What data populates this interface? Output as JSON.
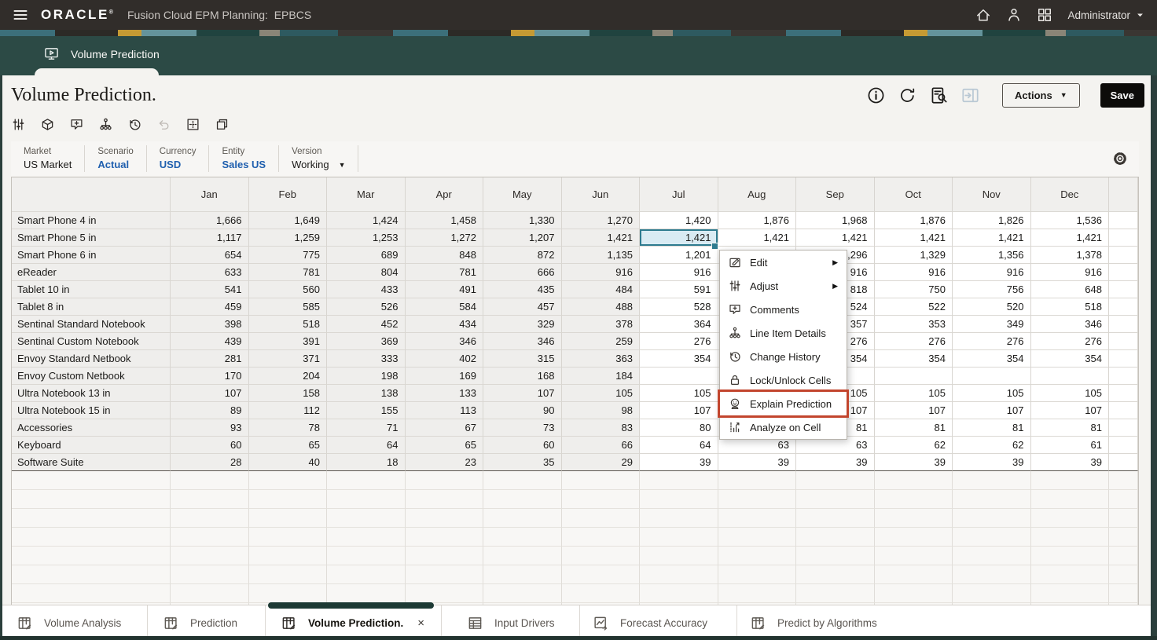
{
  "topbar": {
    "logo": "ORACLE",
    "trademark": "®",
    "product_title": "Fusion Cloud EPM Planning:  EPBCS",
    "user": "Administrator"
  },
  "workspace_tab": {
    "label": "Volume Prediction"
  },
  "page_header": {
    "title": "Volume Prediction.",
    "actions_button": "Actions",
    "save_button": "Save"
  },
  "toolbar_icons": [
    "adjust-icon",
    "cube-icon",
    "add-comment-icon",
    "hierarchy-icon",
    "history-icon",
    "undo-icon",
    "grid-select-icon",
    "window-icon"
  ],
  "pov": {
    "members": [
      {
        "dimension": "Market",
        "member": "US Market",
        "style": "plain",
        "dropdown": false
      },
      {
        "dimension": "Scenario",
        "member": "Actual",
        "style": "link",
        "dropdown": false
      },
      {
        "dimension": "Currency",
        "member": "USD",
        "style": "link",
        "dropdown": false
      },
      {
        "dimension": "Entity",
        "member": "Sales US",
        "style": "link",
        "dropdown": false
      },
      {
        "dimension": "Version",
        "member": "Working",
        "style": "plain",
        "dropdown": true
      }
    ]
  },
  "grid": {
    "months": [
      "Jan",
      "Feb",
      "Mar",
      "Apr",
      "May",
      "Jun",
      "Jul",
      "Aug",
      "Sep",
      "Oct",
      "Nov",
      "Dec"
    ],
    "readonly_month_count": 6,
    "empty_row_count": 8,
    "selected_cell": {
      "row": "Smart Phone 5 in",
      "month": "Jul",
      "value": "1,421",
      "row_index": 1,
      "month_index": 6
    },
    "rows": [
      {
        "label": "Smart Phone 4 in",
        "values": [
          "1,666",
          "1,649",
          "1,424",
          "1,458",
          "1,330",
          "1,270",
          "1,420",
          "1,876",
          "1,968",
          "1,876",
          "1,826",
          "1,536"
        ]
      },
      {
        "label": "Smart Phone 5 in",
        "values": [
          "1,117",
          "1,259",
          "1,253",
          "1,272",
          "1,207",
          "1,421",
          "1,421",
          "1,421",
          "1,421",
          "1,421",
          "1,421",
          "1,421"
        ]
      },
      {
        "label": "Smart Phone 6 in",
        "values": [
          "654",
          "775",
          "689",
          "848",
          "872",
          "1,135",
          "1,201",
          "",
          "1,296",
          "1,329",
          "1,356",
          "1,378"
        ]
      },
      {
        "label": "eReader",
        "values": [
          "633",
          "781",
          "804",
          "781",
          "666",
          "916",
          "916",
          "",
          "916",
          "916",
          "916",
          "916"
        ]
      },
      {
        "label": "Tablet 10 in",
        "values": [
          "541",
          "560",
          "433",
          "491",
          "435",
          "484",
          "591",
          "",
          "818",
          "750",
          "756",
          "648"
        ]
      },
      {
        "label": "Tablet 8 in",
        "values": [
          "459",
          "585",
          "526",
          "584",
          "457",
          "488",
          "528",
          "",
          "524",
          "522",
          "520",
          "518"
        ]
      },
      {
        "label": "Sentinal Standard Notebook",
        "values": [
          "398",
          "518",
          "452",
          "434",
          "329",
          "378",
          "364",
          "",
          "357",
          "353",
          "349",
          "346"
        ]
      },
      {
        "label": "Sentinal Custom Notebook",
        "values": [
          "439",
          "391",
          "369",
          "346",
          "346",
          "259",
          "276",
          "",
          "276",
          "276",
          "276",
          "276"
        ]
      },
      {
        "label": "Envoy Standard Netbook",
        "values": [
          "281",
          "371",
          "333",
          "402",
          "315",
          "363",
          "354",
          "",
          "354",
          "354",
          "354",
          "354"
        ]
      },
      {
        "label": "Envoy Custom Netbook",
        "values": [
          "170",
          "204",
          "198",
          "169",
          "168",
          "184",
          "",
          "",
          "",
          "",
          "",
          ""
        ]
      },
      {
        "label": "Ultra Notebook 13 in",
        "values": [
          "107",
          "158",
          "138",
          "133",
          "107",
          "105",
          "105",
          "",
          "105",
          "105",
          "105",
          "105"
        ]
      },
      {
        "label": "Ultra Notebook 15 in",
        "values": [
          "89",
          "112",
          "155",
          "113",
          "90",
          "98",
          "107",
          "",
          "107",
          "107",
          "107",
          "107"
        ]
      },
      {
        "label": "Accessories",
        "values": [
          "93",
          "78",
          "71",
          "67",
          "73",
          "83",
          "80",
          "",
          "81",
          "81",
          "81",
          "81"
        ]
      },
      {
        "label": "Keyboard",
        "values": [
          "60",
          "65",
          "64",
          "65",
          "60",
          "66",
          "64",
          "63",
          "63",
          "62",
          "62",
          "61"
        ]
      },
      {
        "label": "Software Suite",
        "values": [
          "28",
          "40",
          "18",
          "23",
          "35",
          "29",
          "39",
          "39",
          "39",
          "39",
          "39",
          "39"
        ]
      }
    ]
  },
  "context_menu": {
    "items": [
      {
        "label": "Edit",
        "icon": "edit-icon",
        "has_submenu": true,
        "highlighted": false
      },
      {
        "label": "Adjust",
        "icon": "adjust-icon",
        "has_submenu": true,
        "highlighted": false
      },
      {
        "label": "Comments",
        "icon": "add-comment-icon",
        "has_submenu": false,
        "highlighted": false
      },
      {
        "label": "Line Item Details",
        "icon": "hierarchy-icon",
        "has_submenu": false,
        "highlighted": false
      },
      {
        "label": "Change History",
        "icon": "history-icon",
        "has_submenu": false,
        "highlighted": false
      },
      {
        "label": "Lock/Unlock Cells",
        "icon": "lock-icon",
        "has_submenu": false,
        "highlighted": false
      },
      {
        "label": "Explain Prediction",
        "icon": "explain-prediction-icon",
        "has_submenu": false,
        "highlighted": true
      },
      {
        "label": "Analyze on Cell",
        "icon": "analyze-icon",
        "has_submenu": false,
        "highlighted": false
      }
    ],
    "highlight_color": "#c2452d"
  },
  "bottom_tabs": [
    {
      "label": "Volume Analysis",
      "icon": "form-edit-icon",
      "active": false,
      "closable": false
    },
    {
      "label": "Prediction",
      "icon": "form-edit-icon",
      "active": false,
      "closable": false
    },
    {
      "label": "Volume Prediction.",
      "icon": "form-edit-icon",
      "active": true,
      "closable": true
    },
    {
      "label": "Input Drivers",
      "icon": "table-icon",
      "active": false,
      "closable": false
    },
    {
      "label": "Forecast Accuracy",
      "icon": "forecast-chart-icon",
      "active": false,
      "closable": false
    },
    {
      "label": "Predict by Algorithms",
      "icon": "form-edit-icon",
      "active": false,
      "closable": false
    }
  ],
  "close_glyph": "×",
  "colors": {
    "topbar_bg": "#312d2a",
    "band_teal": "#2c4a45",
    "accent_blue": "#1f5fae",
    "selection_border": "#2e7b8f",
    "selection_bg": "#d9ebf3",
    "highlight_red": "#c2452d",
    "save_button_bg": "#0d0c0a"
  }
}
